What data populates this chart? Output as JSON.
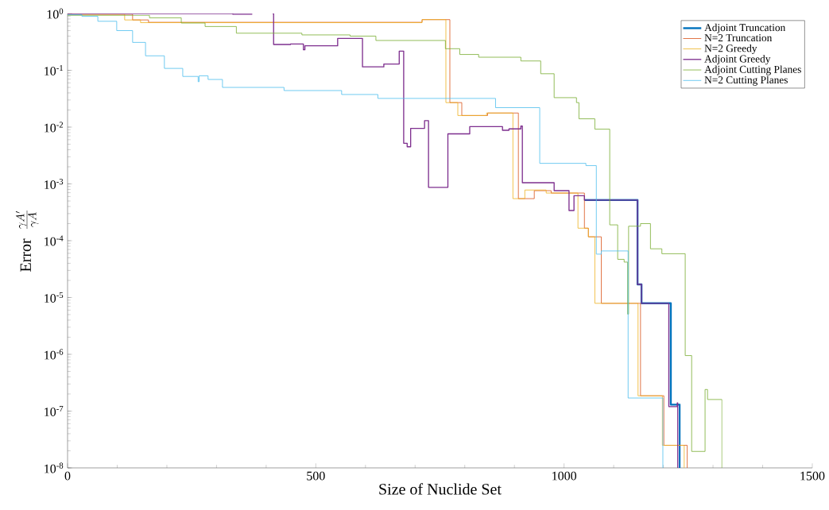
{
  "chart_data": {
    "type": "step",
    "xlabel": "Size of Nuclide Set",
    "ylabel": "\\mathrm{Error}\\;\\; \\frac{\\gamma A'}{\\gamma A}",
    "log": "y",
    "legend": "top right",
    "grid": false,
    "xlim": [
      0,
      1500
    ],
    "xticks": [
      0,
      500,
      1000,
      1500
    ],
    "ylim": [
      1e-08,
      1
    ],
    "yticks": [
      {
        "value": 1e-08,
        "label": "10$^{-8}$"
      },
      {
        "value": 1e-07,
        "label": "10$^{-7}$"
      },
      {
        "value": 1e-06,
        "label": "10$^{-6}$"
      },
      {
        "value": 1e-05,
        "label": "10$^{-5}$"
      },
      {
        "value": 0.0001,
        "label": "10$^{-4}$"
      },
      {
        "value": 0.001,
        "label": "10$^{-3}$"
      },
      {
        "value": 0.01,
        "label": "10$^{-2}$"
      },
      {
        "value": 0.1,
        "label": "10$^{-1}$"
      },
      {
        "value": 1,
        "label": "10$^{0}$"
      }
    ],
    "series": [
      {
        "name": "Adjoint Truncation",
        "color": "#0072bd",
        "x": [
          1041,
          1148,
          1156,
          1215,
          1233
        ],
        "values": [
          0.00052,
          1.7e-05,
          7.9e-06,
          1.3e-07,
          1e-08
        ]
      },
      {
        "name": "N=2 Truncation",
        "color": "#d95319",
        "x": [
          0,
          131,
          163,
          714,
          770,
          794,
          846,
          908,
          940,
          974,
          1041,
          1049,
          1075,
          1154,
          1201,
          1248
        ],
        "values": [
          0.97,
          0.77,
          0.7,
          0.78,
          0.027,
          0.016,
          0.0177,
          0.00055,
          0.00076,
          0.00069,
          0.000166,
          0.000117,
          7.9e-06,
          1.86e-07,
          2.5e-08,
          1e-08
        ]
      },
      {
        "name": "N=2 Greedy",
        "color": "#edb120",
        "x": [
          0,
          115,
          147,
          714,
          762,
          786,
          844,
          897,
          921,
          964,
          1028,
          1049,
          1062,
          1149,
          1198,
          1242
        ],
        "values": [
          0.97,
          0.77,
          0.69,
          0.78,
          0.027,
          0.016,
          0.0177,
          0.00055,
          0.00078,
          0.00069,
          0.000166,
          0.000117,
          7.9e-06,
          1.86e-07,
          2.5e-08,
          1e-08
        ]
      },
      {
        "name": "Adjoint Greedy",
        "color": "#7e2f8e",
        "x": [
          0,
          333,
          372,
          390,
          413,
          415,
          449,
          475,
          478,
          544,
          594,
          637,
          668,
          677,
          684,
          691,
          719,
          727,
          766,
          810,
          876,
          889,
          913,
          916,
          980,
          1010,
          1020,
          1041,
          1148,
          1156,
          1211,
          1228,
          1229
        ],
        "values": [
          1,
          0.97,
          0.97,
          null,
          1,
          0.285,
          0.29,
          0.23,
          0.27,
          0.365,
          0.115,
          0.129,
          0.218,
          0.0052,
          0.0045,
          0.0095,
          0.013,
          0.00087,
          0.0076,
          0.0102,
          0.0088,
          0.0093,
          0.0104,
          0.00105,
          0.00076,
          0.00034,
          0.00062,
          0.00052,
          1.7e-05,
          7.9e-06,
          1.2e-07,
          1.4e-07,
          1e-08
        ]
      },
      {
        "name": "Adjoint Cutting Planes",
        "color": "#77ac30",
        "x": [
          0,
          165,
          229,
          277,
          340,
          472,
          569,
          621,
          761,
          790,
          828,
          913,
          953,
          980,
          1025,
          1030,
          1062,
          1092,
          1108,
          1121,
          1128,
          1130,
          1154,
          1174,
          1197,
          1244,
          1257,
          1284,
          1289,
          1318
        ],
        "values": [
          0.93,
          0.84,
          0.68,
          0.59,
          0.45,
          0.42,
          0.4,
          0.335,
          0.24,
          0.19,
          0.17,
          0.146,
          0.087,
          0.033,
          0.027,
          0.014,
          0.0092,
          0.00019,
          4.7e-05,
          4.2e-05,
          5.1e-06,
          0.00018,
          0.0002,
          7.2e-05,
          5.9e-05,
          9.5e-07,
          1.95e-08,
          2.4e-07,
          1.6e-07,
          1e-08
        ]
      },
      {
        "name": "N=2 Cutting Planes",
        "color": "#4dbeee",
        "x": [
          0,
          29,
          61,
          99,
          131,
          157,
          195,
          232,
          263,
          265,
          283,
          312,
          436,
          552,
          625,
          862,
          951,
          1044,
          1065,
          1075,
          1129,
          1199
        ],
        "values": [
          0.95,
          0.89,
          0.73,
          0.5,
          0.31,
          0.18,
          0.108,
          0.078,
          0.063,
          0.08,
          0.069,
          0.05,
          0.044,
          0.0375,
          0.032,
          0.022,
          0.0023,
          0.0021,
          5.8e-05,
          6.6e-05,
          1.7e-07,
          1e-08
        ]
      }
    ]
  }
}
